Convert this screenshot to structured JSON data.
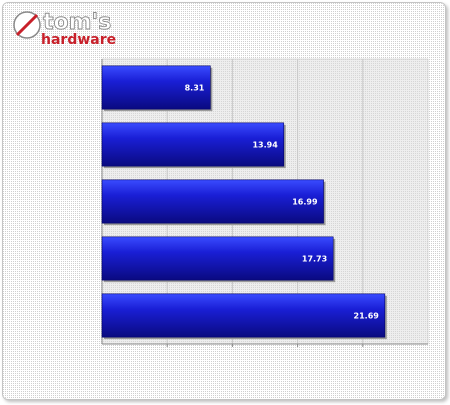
{
  "logo": {
    "line1": "tom's",
    "line2": "hardware"
  },
  "colors": {
    "bar_light": "#3a4cff",
    "bar_mid": "#1a1fd6",
    "bar_dark": "#0a0a80",
    "plot_bg": "#e6e6e6",
    "logo_accent": "#c8202a"
  },
  "chart_data": {
    "type": "bar",
    "orientation": "horizontal",
    "title": "",
    "xlabel": "",
    "ylabel": "",
    "categories": [
      "",
      "",
      "",
      "",
      ""
    ],
    "values": [
      8.31,
      13.94,
      16.99,
      17.73,
      21.69
    ],
    "value_labels": [
      "8.31",
      "13.94",
      "16.99",
      "17.73",
      "21.69"
    ],
    "xlim": [
      0,
      25
    ],
    "grid": true,
    "legend": "none"
  }
}
